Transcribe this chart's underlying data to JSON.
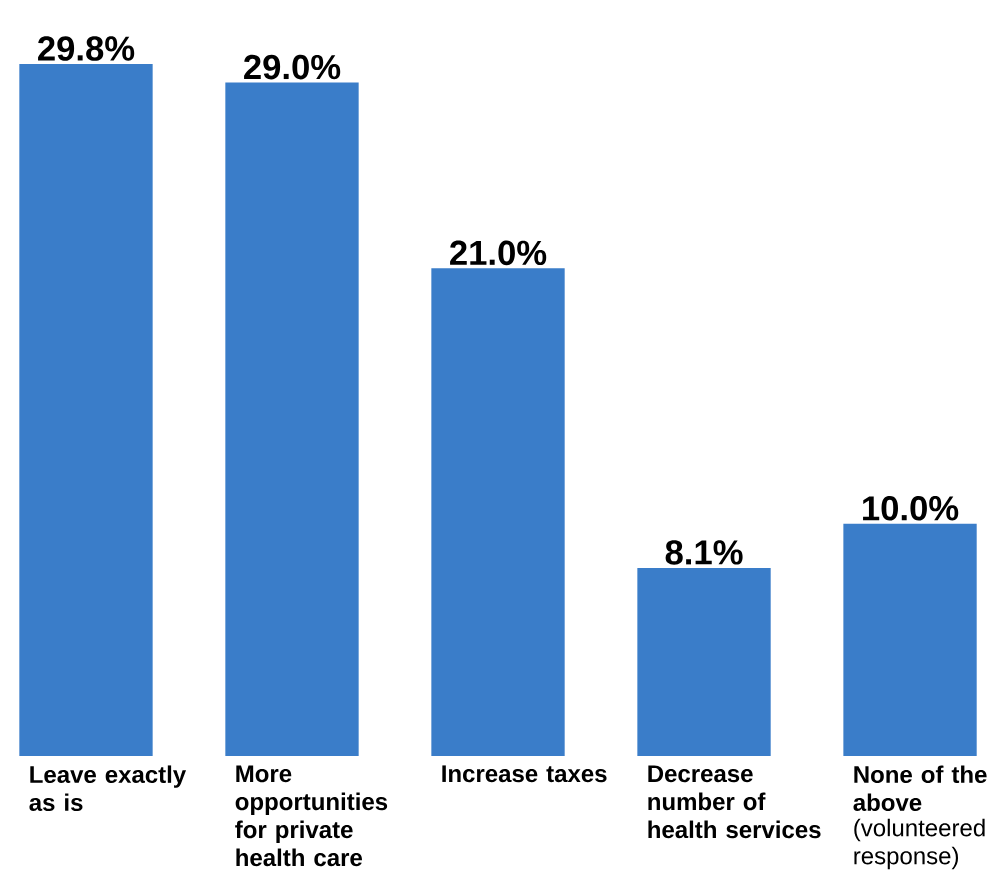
{
  "chart_data": {
    "type": "bar",
    "categories": [
      "Leave exactly as is",
      "More opportunities for private health care",
      "Increase taxes",
      "Decrease number of health services",
      "None of the above"
    ],
    "values": [
      29.8,
      29.0,
      21.0,
      8.1,
      10.0
    ],
    "value_labels": [
      "29.8%",
      "29.0%",
      "21.0%",
      "8.1%",
      "10.0%"
    ],
    "color": "#3a7dc9",
    "annotations": [
      "(volunteered response)"
    ]
  }
}
